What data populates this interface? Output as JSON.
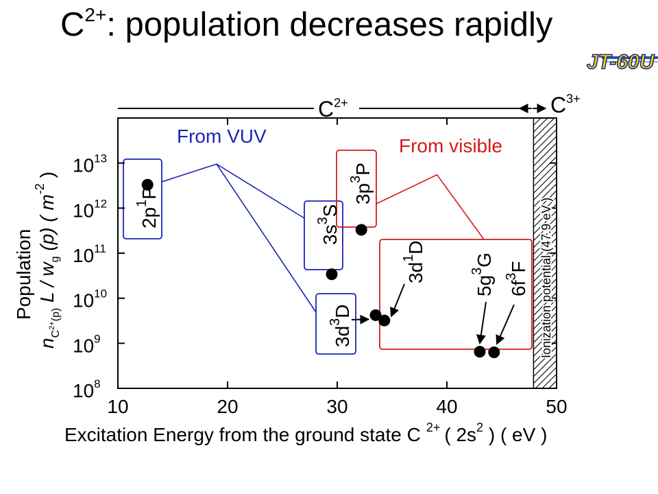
{
  "slide": {
    "title_base": "C",
    "title_sup": "2+",
    "title_rest": ": population decreases rapidly",
    "logo_text": "JT-60U"
  },
  "chart_data": {
    "type": "scatter",
    "x_scale": "linear",
    "y_scale": "log",
    "xlim": [
      10,
      50
    ],
    "ylim": [
      100000000.0,
      100000000000000.0
    ],
    "x_ticks": [
      {
        "value": 10,
        "label": "10"
      },
      {
        "value": 20,
        "label": "20"
      },
      {
        "value": 30,
        "label": "30"
      },
      {
        "value": 40,
        "label": "40"
      },
      {
        "value": 50,
        "label": "50"
      }
    ],
    "y_ticks": [
      {
        "value": 10000000000000.0,
        "base": "10",
        "exp": "13"
      },
      {
        "value": 1000000000000.0,
        "base": "10",
        "exp": "12"
      },
      {
        "value": 100000000000.0,
        "base": "10",
        "exp": "11"
      },
      {
        "value": 10000000000.0,
        "base": "10",
        "exp": "10"
      },
      {
        "value": 1000000000.0,
        "base": "10",
        "exp": "9"
      },
      {
        "value": 100000000.0,
        "base": "10",
        "exp": "8"
      }
    ],
    "xlabel": {
      "main": "Excitation Energy from the ground state C",
      "sup": "2+",
      "open": "( 2s",
      "sup2": "2",
      "close": " ) ( eV )"
    },
    "ylabel": {
      "line1": "Population",
      "n": "n",
      "n_sub": "C",
      "n_sub_sup": "2+",
      "n_sub2": "(p)",
      "mid": " L / w",
      "w_sub": "g",
      "p": " (p) ( m",
      "unit_sup": "-2",
      "close": " )"
    },
    "points": [
      {
        "level": "2p 1P",
        "x": 12.7,
        "y": 3300000000000.0,
        "group": "From VUV"
      },
      {
        "level": "3s 3S",
        "x": 29.5,
        "y": 34000000000.0,
        "group": "From VUV"
      },
      {
        "level": "3p 3P",
        "x": 32.2,
        "y": 330000000000.0,
        "group": "From visible"
      },
      {
        "level": "3d 3D",
        "x": 33.5,
        "y": 4200000000.0,
        "group": "From VUV"
      },
      {
        "level": "3d 1D",
        "x": 34.3,
        "y": 3200000000.0,
        "group": "From visible"
      },
      {
        "level": "5g 3G",
        "x": 43.0,
        "y": 650000000.0,
        "group": "From visible"
      },
      {
        "level": "6f 3F",
        "x": 44.3,
        "y": 630000000.0,
        "group": "From visible"
      }
    ],
    "groups": [
      {
        "name": "From VUV",
        "color": "#1a24b8"
      },
      {
        "name": "From visible",
        "color": "#d61818"
      }
    ],
    "level_labels": {
      "2p1P": {
        "a": "2p",
        "s": "1",
        "b": "P"
      },
      "3s3S": {
        "a": "3s",
        "s": "3",
        "b": "S"
      },
      "3p3P": {
        "a": "3p",
        "s": "3",
        "b": "P"
      },
      "3d3D": {
        "a": "3d",
        "s": "3",
        "b": "D"
      },
      "3d1D": {
        "a": "3d",
        "s": "1",
        "b": "D"
      },
      "5g3G": {
        "a": "5g",
        "s": "3",
        "b": "G"
      },
      "6f3F": {
        "a": "6f",
        "s": "3",
        "b": "F"
      }
    },
    "ionization": {
      "x": 47.9,
      "label": "Ionization potential  (47.9 eV )"
    },
    "ion_stage": {
      "left": {
        "base": "C",
        "sup": "2+"
      },
      "right": {
        "base": "C",
        "sup": "3+"
      }
    },
    "colors": {
      "vuv": "#1a24b8",
      "visible": "#d61818",
      "marker": "#000000"
    }
  }
}
